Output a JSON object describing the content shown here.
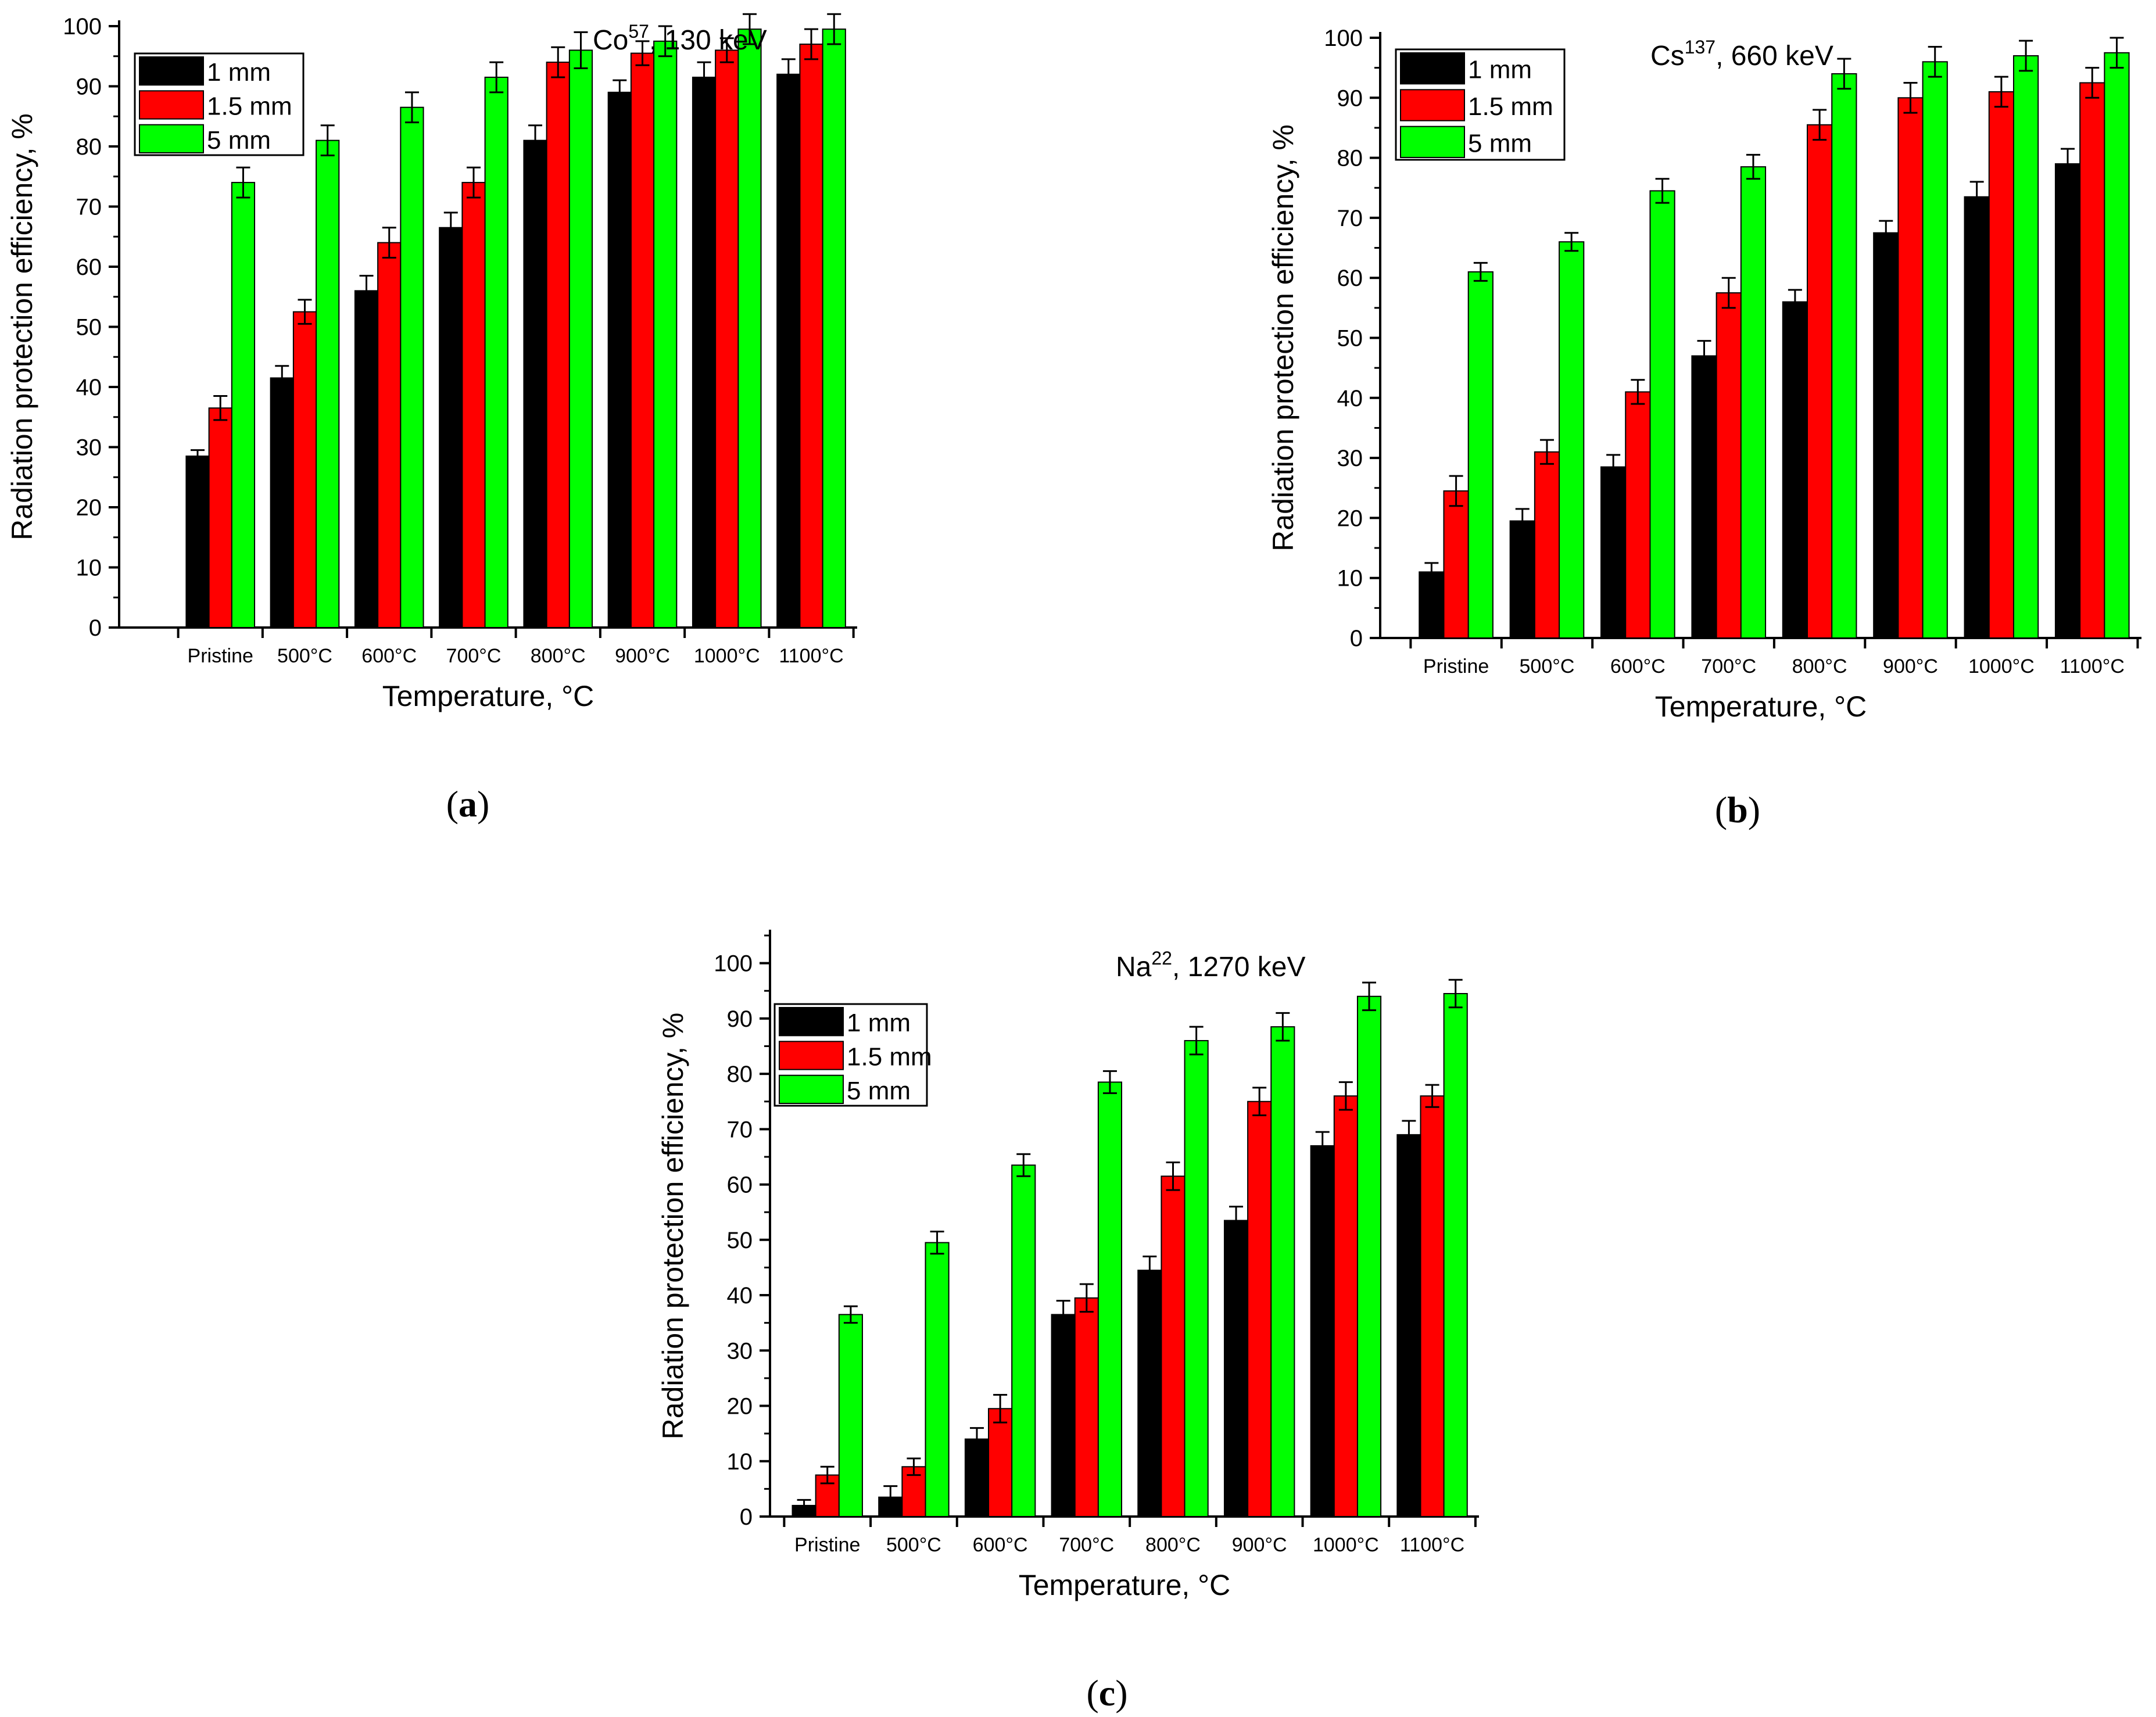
{
  "colors": {
    "1 mm": "#000000",
    "1.5 mm": "#ff0000",
    "5 mm": "#00ff00",
    "axis": "#000000",
    "error_bar": "#000000"
  },
  "chart_data": [
    {
      "type": "bar",
      "panel": "(a)",
      "panel_letter": "a",
      "title": {
        "element": "Co",
        "sup": "57",
        "rest": ", 130 keV"
      },
      "xlabel": "Temperature, °C",
      "ylabel": "Radiation protection efficiency, %",
      "ylim": [
        0,
        100
      ],
      "yticks": [
        "0",
        "10",
        "20",
        "30",
        "40",
        "50",
        "60",
        "70",
        "80",
        "90",
        "100"
      ],
      "categories": [
        "Pristine",
        "500°C",
        "600°C",
        "700°C",
        "800°C",
        "900°C",
        "1000°C",
        "1100°C"
      ],
      "legend_position": "top-left",
      "series": [
        {
          "name": "1 mm",
          "values": [
            28.5,
            41.5,
            56.0,
            66.5,
            81.0,
            89.0,
            91.5,
            92.0
          ],
          "errors": [
            1.0,
            2.0,
            2.5,
            2.5,
            2.5,
            2.0,
            2.5,
            2.5
          ]
        },
        {
          "name": "1.5 mm",
          "values": [
            36.5,
            52.5,
            64.0,
            74.0,
            94.0,
            95.5,
            96.0,
            97.0
          ],
          "errors": [
            2.0,
            2.0,
            2.5,
            2.5,
            2.5,
            2.0,
            2.0,
            2.5
          ]
        },
        {
          "name": "5 mm",
          "values": [
            74.0,
            81.0,
            86.5,
            91.5,
            96.0,
            97.5,
            99.5,
            99.5
          ],
          "errors": [
            2.5,
            2.5,
            2.5,
            2.5,
            3.0,
            2.5,
            2.5,
            2.5
          ]
        }
      ]
    },
    {
      "type": "bar",
      "panel": "(b)",
      "panel_letter": "b",
      "title": {
        "element": "Cs",
        "sup": "137",
        "rest": ", 660 keV"
      },
      "xlabel": "Temperature, °C",
      "ylabel": "Radiation protection efficiency, %",
      "ylim": [
        0,
        100
      ],
      "yticks": [
        "0",
        "10",
        "20",
        "30",
        "40",
        "50",
        "60",
        "70",
        "80",
        "90",
        "100"
      ],
      "categories": [
        "Pristine",
        "500°C",
        "600°C",
        "700°C",
        "800°C",
        "900°C",
        "1000°C",
        "1100°C"
      ],
      "legend_position": "top-left",
      "series": [
        {
          "name": "1 mm",
          "values": [
            11.0,
            19.5,
            28.5,
            47.0,
            56.0,
            67.5,
            73.5,
            79.0
          ],
          "errors": [
            1.5,
            2.0,
            2.0,
            2.5,
            2.0,
            2.0,
            2.5,
            2.5
          ]
        },
        {
          "name": "1.5 mm",
          "values": [
            24.5,
            31.0,
            41.0,
            57.5,
            85.5,
            90.0,
            91.0,
            92.5
          ],
          "errors": [
            2.5,
            2.0,
            2.0,
            2.5,
            2.5,
            2.5,
            2.5,
            2.5
          ]
        },
        {
          "name": "5 mm",
          "values": [
            61.0,
            66.0,
            74.5,
            78.5,
            94.0,
            96.0,
            97.0,
            97.5
          ],
          "errors": [
            1.5,
            1.5,
            2.0,
            2.0,
            2.5,
            2.5,
            2.5,
            2.5
          ]
        }
      ]
    },
    {
      "type": "bar",
      "panel": "(c)",
      "panel_letter": "c",
      "title": {
        "element": "Na",
        "sup": "22",
        "rest": ", 1270 keV"
      },
      "xlabel": "Temperature, °C",
      "ylabel": "Radiation protection efficiency, %",
      "ylim": [
        0,
        105
      ],
      "yticks": [
        "0",
        "10",
        "20",
        "30",
        "40",
        "50",
        "60",
        "70",
        "80",
        "90",
        "100"
      ],
      "categories": [
        "Pristine",
        "500°C",
        "600°C",
        "700°C",
        "800°C",
        "900°C",
        "1000°C",
        "1100°C"
      ],
      "legend_position": "top-left",
      "series": [
        {
          "name": "1 mm",
          "values": [
            2.0,
            3.5,
            14.0,
            36.5,
            44.5,
            53.5,
            67.0,
            69.0
          ],
          "errors": [
            1.0,
            2.0,
            2.0,
            2.5,
            2.5,
            2.5,
            2.5,
            2.5
          ]
        },
        {
          "name": "1.5 mm",
          "values": [
            7.5,
            9.0,
            19.5,
            39.5,
            61.5,
            75.0,
            76.0,
            76.0
          ],
          "errors": [
            1.5,
            1.5,
            2.5,
            2.5,
            2.5,
            2.5,
            2.5,
            2.0
          ]
        },
        {
          "name": "5 mm",
          "values": [
            36.5,
            49.5,
            63.5,
            78.5,
            86.0,
            88.5,
            94.0,
            94.5
          ],
          "errors": [
            1.5,
            2.0,
            2.0,
            2.0,
            2.5,
            2.5,
            2.5,
            2.5
          ]
        }
      ]
    }
  ]
}
